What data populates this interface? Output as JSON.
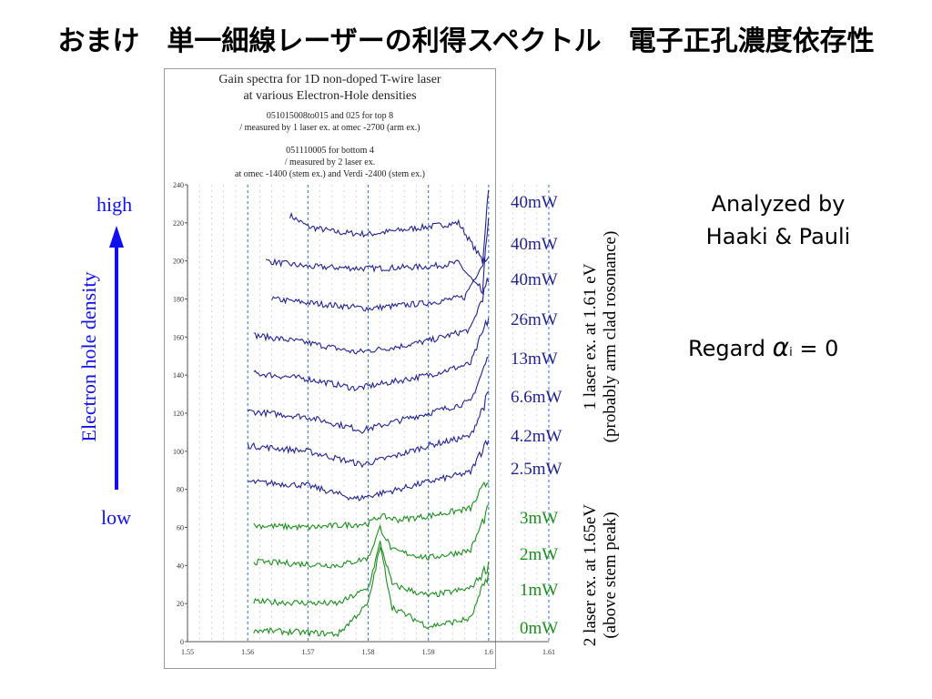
{
  "slide": {
    "title": "おまけ　単一細線レーザーの利得スペクトル　電子正孔濃度依存性",
    "analyzed_by": "Analyzed by",
    "analysts": "Haaki & Pauli",
    "regard_prefix": "Regard",
    "alpha_symbol": "α",
    "alpha_sub": "i",
    "regard_suffix": "= 0",
    "density_axis_label": "Electron hole density",
    "density_high": "high",
    "density_low": "low"
  },
  "figure": {
    "title_line1": "Gain spectra for 1D non-doped T-wire laser",
    "title_line2": "at various Electron-Hole densities",
    "note1_line1": "051015008to015 and 025 for top 8",
    "note1_line2": "/ measured by 1 laser ex. at omec -2700 (arm ex.)",
    "note2_line1": "051110005 for bottom 4",
    "note2_line2": "/ measured by 2 laser ex.",
    "note2_line3": "at omec -1400 (stem ex.) and Verdi -2400 (stem ex.)"
  },
  "group_labels": {
    "blue_line1": "1 laser ex. at 1.61 eV",
    "blue_line2": "(probably arm clad rosonance)",
    "green_line1": "2 laser ex. at 1.65eV",
    "green_line2": "(above stem peak)"
  },
  "colors": {
    "blue": "#23238e",
    "green": "#1e8c1e",
    "arrow": "#1010ee",
    "grid": "#3d7ad6"
  },
  "chart_data": {
    "type": "line",
    "xlim": [
      1.55,
      1.61
    ],
    "ylim": [
      0,
      240
    ],
    "x_ticks": [
      "1.55",
      "1.56",
      "1.57",
      "1.58",
      "1.59",
      "1.6",
      "1.61"
    ],
    "y_ticks": [
      "0",
      "20",
      "40",
      "60",
      "80",
      "100",
      "120",
      "140",
      "160",
      "180",
      "200",
      "220",
      "240"
    ],
    "grid": "vertical dashed",
    "series": [
      {
        "name": "40mW",
        "group": "blue",
        "x_start": 1.567,
        "baseline": 215,
        "dip_depth": 2,
        "dip_center": 1.58,
        "peak": 20,
        "points": [
          [
            1.567,
            224
          ],
          [
            1.57,
            218
          ],
          [
            1.575,
            215
          ],
          [
            1.58,
            214
          ],
          [
            1.585,
            216
          ],
          [
            1.59,
            218
          ],
          [
            1.595,
            220
          ],
          [
            1.599,
            200
          ],
          [
            1.6,
            240
          ]
        ]
      },
      {
        "name": "40mW",
        "group": "blue",
        "x_start": 1.563,
        "baseline": 196,
        "dip_depth": 2,
        "dip_center": 1.58,
        "peak": 20,
        "points": [
          [
            1.563,
            200
          ],
          [
            1.57,
            197
          ],
          [
            1.58,
            196
          ],
          [
            1.59,
            197
          ],
          [
            1.595,
            199
          ],
          [
            1.599,
            183
          ],
          [
            1.6,
            225
          ]
        ]
      },
      {
        "name": "40mW",
        "group": "blue",
        "x_start": 1.564,
        "baseline": 177,
        "dip_depth": 3,
        "dip_center": 1.58,
        "peak": 20,
        "points": [
          [
            1.564,
            180
          ],
          [
            1.57,
            178
          ],
          [
            1.58,
            175
          ],
          [
            1.59,
            178
          ],
          [
            1.596,
            181
          ],
          [
            1.6,
            205
          ]
        ]
      },
      {
        "name": "26mW",
        "group": "blue",
        "x_start": 1.561,
        "baseline": 159,
        "dip_depth": 6,
        "dip_center": 1.58,
        "peak": 30,
        "points": [
          [
            1.561,
            161
          ],
          [
            1.57,
            157
          ],
          [
            1.578,
            152
          ],
          [
            1.585,
            155
          ],
          [
            1.59,
            158
          ],
          [
            1.597,
            164
          ],
          [
            1.6,
            190
          ]
        ]
      },
      {
        "name": "13mW",
        "group": "blue",
        "x_start": 1.561,
        "baseline": 141,
        "dip_depth": 8,
        "dip_center": 1.578,
        "peak": 30,
        "points": [
          [
            1.561,
            141
          ],
          [
            1.57,
            138
          ],
          [
            1.578,
            133
          ],
          [
            1.585,
            137
          ],
          [
            1.59,
            140
          ],
          [
            1.597,
            146
          ],
          [
            1.6,
            170
          ]
        ]
      },
      {
        "name": "6.6mW",
        "group": "blue",
        "x_start": 1.56,
        "baseline": 121,
        "dip_depth": 10,
        "dip_center": 1.579,
        "peak": 30,
        "points": [
          [
            1.56,
            121
          ],
          [
            1.57,
            118
          ],
          [
            1.579,
            111
          ],
          [
            1.585,
            116
          ],
          [
            1.59,
            120
          ],
          [
            1.597,
            126
          ],
          [
            1.6,
            150
          ]
        ]
      },
      {
        "name": "4.2mW",
        "group": "blue",
        "x_start": 1.56,
        "baseline": 103,
        "dip_depth": 10,
        "dip_center": 1.579,
        "peak": 30,
        "points": [
          [
            1.56,
            103
          ],
          [
            1.57,
            100
          ],
          [
            1.579,
            93
          ],
          [
            1.585,
            98
          ],
          [
            1.59,
            103
          ],
          [
            1.597,
            108
          ],
          [
            1.6,
            130
          ]
        ]
      },
      {
        "name": "2.5mW",
        "group": "blue",
        "x_start": 1.56,
        "baseline": 84,
        "dip_depth": 9,
        "dip_center": 1.578,
        "peak": 25,
        "points": [
          [
            1.56,
            84
          ],
          [
            1.57,
            82
          ],
          [
            1.578,
            75
          ],
          [
            1.585,
            80
          ],
          [
            1.59,
            84
          ],
          [
            1.597,
            89
          ],
          [
            1.6,
            108
          ]
        ]
      },
      {
        "name": "3mW",
        "group": "green",
        "x_start": 1.561,
        "baseline": 61,
        "dip_depth": 0,
        "dip_center": 1.58,
        "peak": 25,
        "points": [
          [
            1.561,
            61
          ],
          [
            1.57,
            60
          ],
          [
            1.58,
            62
          ],
          [
            1.582,
            66
          ],
          [
            1.585,
            64
          ],
          [
            1.59,
            66
          ],
          [
            1.597,
            70
          ],
          [
            1.6,
            85
          ]
        ]
      },
      {
        "name": "2mW",
        "group": "green",
        "x_start": 1.561,
        "baseline": 42,
        "dip_depth": 0,
        "dip_center": 1.58,
        "peak": 25,
        "points": [
          [
            1.561,
            42
          ],
          [
            1.575,
            40
          ],
          [
            1.58,
            44
          ],
          [
            1.582,
            60
          ],
          [
            1.584,
            48
          ],
          [
            1.59,
            44
          ],
          [
            1.597,
            48
          ],
          [
            1.6,
            70
          ]
        ]
      },
      {
        "name": "1mW",
        "group": "green",
        "x_start": 1.561,
        "baseline": 21,
        "dip_depth": 0,
        "dip_center": 1.58,
        "peak": 20,
        "points": [
          [
            1.561,
            21
          ],
          [
            1.575,
            20
          ],
          [
            1.58,
            28
          ],
          [
            1.582,
            52
          ],
          [
            1.584,
            30
          ],
          [
            1.59,
            24
          ],
          [
            1.597,
            28
          ],
          [
            1.6,
            40
          ]
        ]
      },
      {
        "name": "0mW",
        "group": "green",
        "x_start": 1.561,
        "baseline": 6,
        "dip_depth": 0,
        "dip_center": 1.58,
        "peak": 20,
        "points": [
          [
            1.561,
            6
          ],
          [
            1.575,
            4
          ],
          [
            1.58,
            20
          ],
          [
            1.582,
            50
          ],
          [
            1.584,
            18
          ],
          [
            1.59,
            8
          ],
          [
            1.597,
            12
          ],
          [
            1.6,
            36
          ]
        ]
      }
    ]
  }
}
